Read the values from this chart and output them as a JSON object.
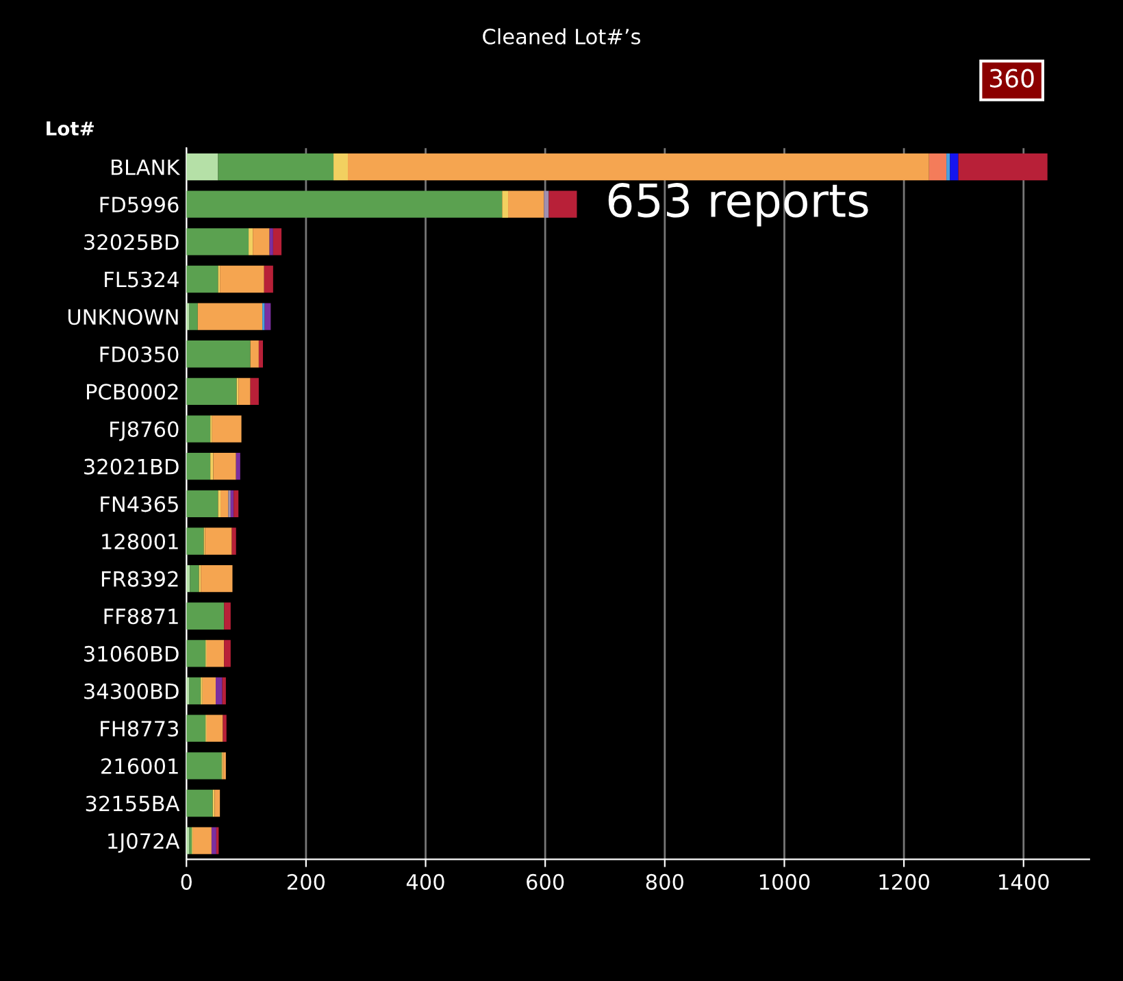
{
  "chart_data": {
    "type": "bar",
    "orientation": "horizontal",
    "stacked": true,
    "title": "Cleaned Lot#’s",
    "ylabel": "Lot#",
    "categories": [
      "BLANK",
      "FD5996",
      "32025BD",
      "FL5324",
      "UNKNOWN",
      "FD0350",
      "PCB0002",
      "FJ8760",
      "32021BD",
      "FN4365",
      "128001",
      "FR8392",
      "FF8871",
      "31060BD",
      "34300BD",
      "FH8773",
      "216001",
      "32155BA",
      "1J072A"
    ],
    "series": [
      {
        "color": "#b5e0a7",
        "values": [
          53,
          0,
          0,
          0,
          5,
          0,
          0,
          0,
          0,
          0,
          0,
          6,
          0,
          0,
          5,
          0,
          0,
          0,
          5
        ]
      },
      {
        "color": "#5ba150",
        "values": [
          193,
          528,
          104,
          53,
          14,
          107,
          84,
          40,
          40,
          53,
          29,
          15,
          63,
          32,
          19,
          32,
          59,
          44,
          4
        ]
      },
      {
        "color": "#f2d060",
        "values": [
          24,
          10,
          7,
          3,
          0,
          0,
          3,
          3,
          5,
          4,
          2,
          3,
          0,
          2,
          3,
          2,
          2,
          3,
          2
        ]
      },
      {
        "color": "#f5a550",
        "values": [
          972,
          60,
          28,
          74,
          108,
          14,
          20,
          49,
          38,
          13,
          45,
          53,
          0,
          29,
          22,
          27,
          5,
          9,
          31
        ]
      },
      {
        "color": "#f47c5a",
        "values": [
          29,
          0,
          0,
          0,
          0,
          0,
          0,
          0,
          0,
          0,
          0,
          0,
          0,
          0,
          0,
          0,
          0,
          0,
          0
        ]
      },
      {
        "color": "#4aa0e0",
        "values": [
          6,
          0,
          0,
          0,
          4,
          0,
          0,
          0,
          0,
          0,
          0,
          0,
          0,
          0,
          0,
          0,
          0,
          0,
          0
        ]
      },
      {
        "color": "#1515f0",
        "values": [
          14,
          0,
          0,
          0,
          0,
          0,
          0,
          0,
          0,
          0,
          0,
          0,
          0,
          0,
          0,
          0,
          0,
          0,
          0
        ]
      },
      {
        "color": "#9f8fb0",
        "values": [
          0,
          8,
          0,
          0,
          0,
          0,
          0,
          0,
          0,
          4,
          0,
          0,
          0,
          0,
          0,
          0,
          0,
          0,
          0
        ]
      },
      {
        "color": "#7b2fa0",
        "values": [
          0,
          0,
          6,
          0,
          10,
          0,
          0,
          0,
          7,
          5,
          0,
          0,
          0,
          0,
          11,
          0,
          0,
          0,
          8
        ]
      },
      {
        "color": "#b82038",
        "values": [
          149,
          47,
          14,
          15,
          0,
          7,
          14,
          0,
          0,
          8,
          7,
          0,
          11,
          11,
          6,
          6,
          0,
          0,
          4
        ]
      }
    ],
    "xlim": [
      0,
      1510
    ],
    "xticks": [
      0,
      200,
      400,
      600,
      800,
      1000,
      1200,
      1400
    ],
    "grid": "x",
    "annotations": [
      {
        "text": "653 reports",
        "x": 653,
        "y": "FD5996"
      },
      "360"
    ]
  }
}
